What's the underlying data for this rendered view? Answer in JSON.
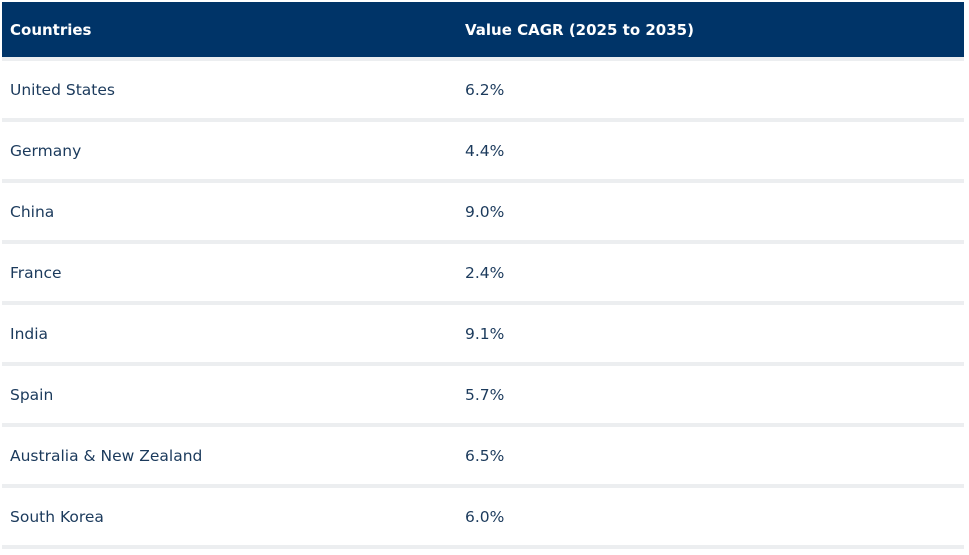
{
  "table": {
    "header": [
      "Countries",
      "Value CAGR (2025 to 2035)"
    ],
    "rows": [
      [
        "United States",
        "6.2%"
      ],
      [
        "Germany",
        "4.4%"
      ],
      [
        "China",
        "9.0%"
      ],
      [
        "France",
        "2.4%"
      ],
      [
        "India",
        "9.1%"
      ],
      [
        "Spain",
        "5.7%"
      ],
      [
        "Australia & New Zealand",
        "6.5%"
      ],
      [
        "South Korea",
        "6.0%"
      ]
    ]
  }
}
